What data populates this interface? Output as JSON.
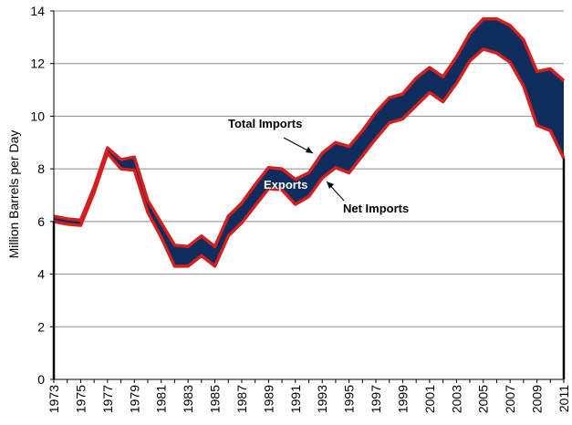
{
  "chart_data": {
    "type": "area",
    "title": "",
    "xlabel": "",
    "ylabel": "Million Barrels per Day",
    "xlim": [
      1973,
      2011
    ],
    "ylim": [
      0,
      14
    ],
    "yticks": [
      0,
      2,
      4,
      6,
      8,
      10,
      12,
      14
    ],
    "xticks": [
      1973,
      1975,
      1977,
      1979,
      1981,
      1983,
      1985,
      1987,
      1989,
      1991,
      1993,
      1995,
      1997,
      1999,
      2001,
      2003,
      2005,
      2007,
      2009,
      2011
    ],
    "grid": true,
    "x": [
      1973,
      1974,
      1975,
      1976,
      1977,
      1978,
      1979,
      1980,
      1981,
      1982,
      1983,
      1984,
      1985,
      1986,
      1987,
      1988,
      1989,
      1990,
      1991,
      1992,
      1993,
      1994,
      1995,
      1996,
      1997,
      1998,
      1999,
      2000,
      2001,
      2002,
      2003,
      2004,
      2005,
      2006,
      2007,
      2008,
      2009,
      2010,
      2011
    ],
    "series": [
      {
        "name": "Total Imports",
        "values": [
          6.2,
          6.1,
          6.05,
          7.3,
          8.8,
          8.35,
          8.45,
          6.8,
          5.95,
          5.1,
          5.05,
          5.45,
          5.05,
          6.2,
          6.7,
          7.4,
          8.05,
          8.0,
          7.6,
          7.85,
          8.6,
          9.0,
          8.85,
          9.45,
          10.15,
          10.7,
          10.85,
          11.45,
          11.85,
          11.5,
          12.25,
          13.15,
          13.7,
          13.7,
          13.45,
          12.9,
          11.7,
          11.8,
          11.35
        ]
      },
      {
        "name": "Net Imports",
        "values": [
          6.0,
          5.9,
          5.85,
          7.1,
          8.6,
          8.0,
          7.95,
          6.35,
          5.4,
          4.3,
          4.3,
          4.7,
          4.3,
          5.45,
          5.95,
          6.6,
          7.25,
          7.2,
          6.65,
          6.95,
          7.65,
          8.05,
          7.85,
          8.5,
          9.15,
          9.75,
          9.9,
          10.4,
          10.9,
          10.55,
          11.25,
          12.1,
          12.55,
          12.4,
          12.05,
          11.15,
          9.65,
          9.45,
          8.4
        ]
      }
    ],
    "fill_label": "Exports",
    "colors": {
      "fill": "#0f2c5e",
      "line": "#d41f1f",
      "grid": "#8c8c8c"
    },
    "annotations": [
      {
        "text": "Total Imports",
        "target_x": 1993,
        "target_y": 8.6
      },
      {
        "text": "Exports"
      },
      {
        "text": "Net Imports",
        "target_x": 1993,
        "target_y": 7.65
      }
    ]
  }
}
